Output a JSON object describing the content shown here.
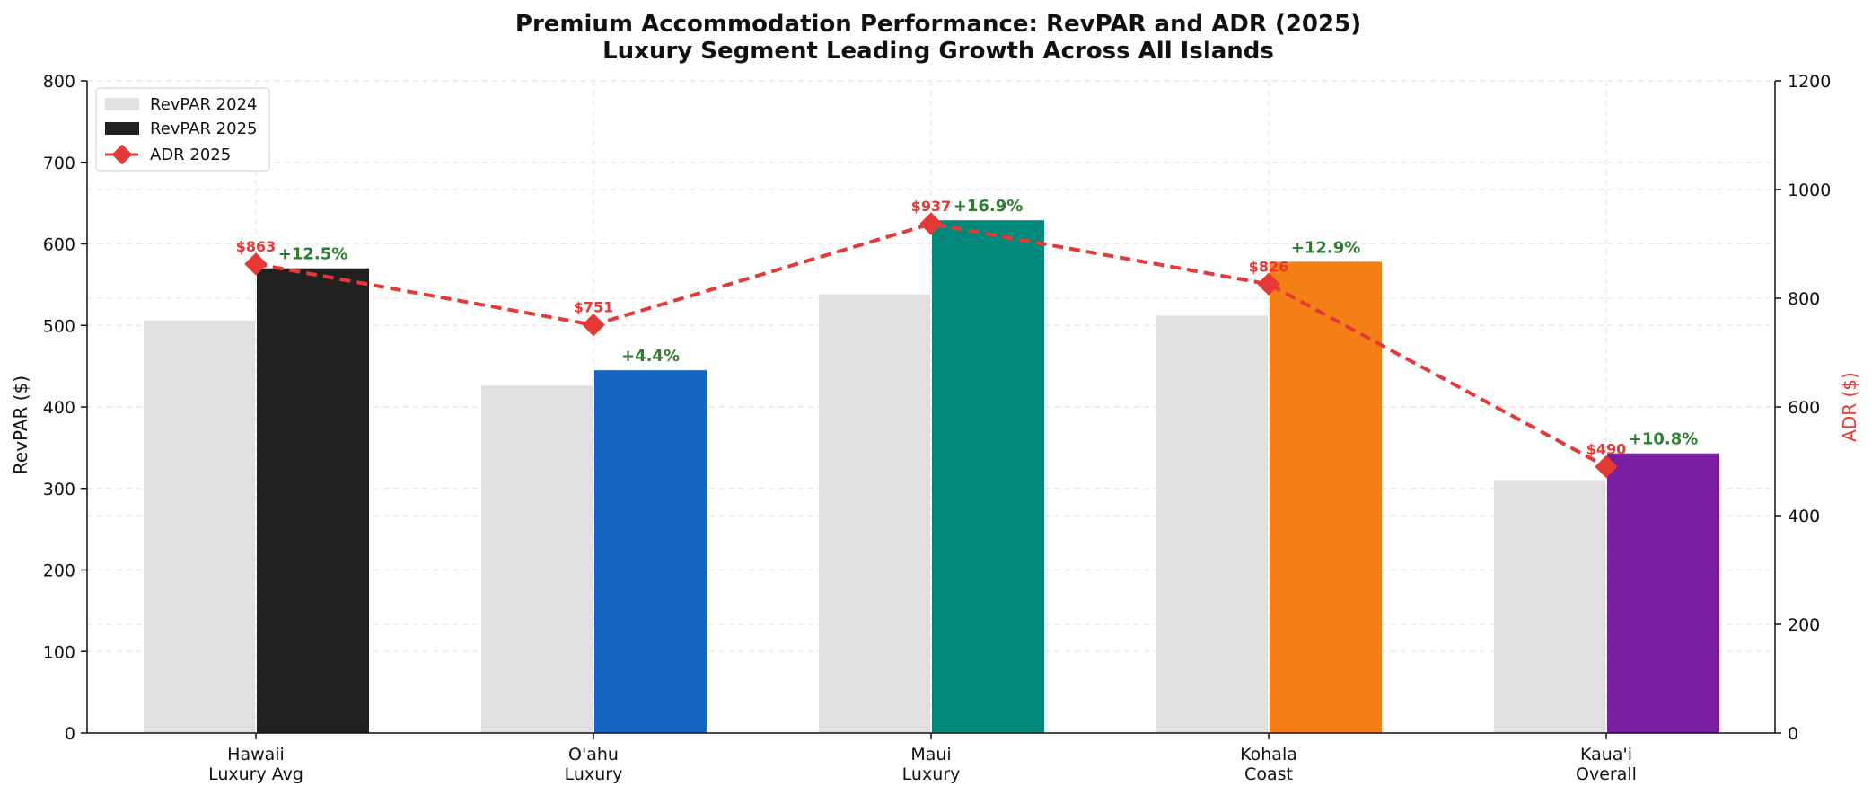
{
  "chart_data": {
    "type": "bar",
    "title": "Premium Accommodation Performance: RevPAR and ADR (2025)",
    "subtitle": "Luxury Segment Leading Growth Across All Islands",
    "ylabel": "RevPAR ($)",
    "y2label": "ADR ($)",
    "ylim": [
      0,
      800
    ],
    "y2lim": [
      0,
      1200
    ],
    "yticks": [
      "0",
      "100",
      "200",
      "300",
      "400",
      "500",
      "600",
      "700",
      "800"
    ],
    "y2ticks": [
      "0",
      "200",
      "400",
      "600",
      "800",
      "1000",
      "1200"
    ],
    "grid": true,
    "legend_position": "top-left",
    "categories": [
      [
        "Hawaii",
        "Luxury Avg"
      ],
      [
        "O'ahu",
        "Luxury"
      ],
      [
        "Maui",
        "Luxury"
      ],
      [
        "Kohala",
        "Coast"
      ],
      [
        "Kaua'i",
        "Overall"
      ]
    ],
    "series": [
      {
        "name": "RevPAR 2024",
        "type": "bar",
        "axis": "left",
        "values": [
          506,
          426,
          538,
          512,
          310
        ],
        "color": "#e0e0e0"
      },
      {
        "name": "RevPAR 2025",
        "type": "bar",
        "axis": "left",
        "values": [
          570,
          445,
          629,
          578,
          343
        ],
        "colors": [
          "#212121",
          "#1565c0",
          "#00897b",
          "#f57f17",
          "#7b1fa2"
        ]
      },
      {
        "name": "ADR 2025",
        "type": "line",
        "axis": "right",
        "values": [
          863,
          751,
          937,
          826,
          490
        ],
        "color": "#e53935"
      }
    ],
    "adr_labels": [
      "$863",
      "$751",
      "$937",
      "$826",
      "$490"
    ],
    "growth_labels": [
      "+12.5%",
      "+4.4%",
      "+16.9%",
      "+12.9%",
      "+10.8%"
    ],
    "colors": {
      "legend_2025": "#212121",
      "growth": "#2e7d32",
      "adr": "#e53935"
    }
  }
}
